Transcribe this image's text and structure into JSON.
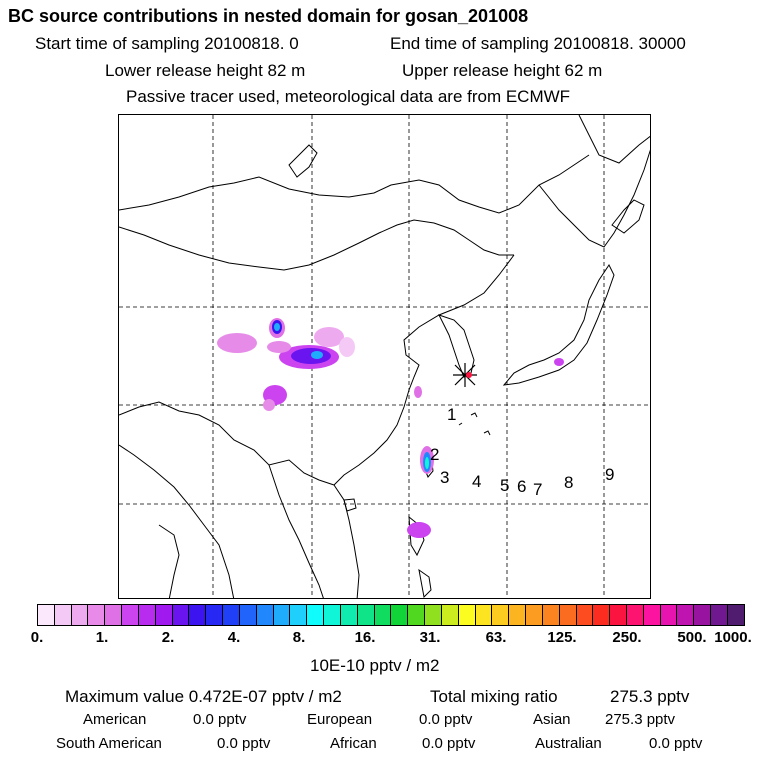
{
  "header": {
    "title": "BC  source contributions in nested domain for gosan_201008",
    "line1_start": "Start time of sampling 20100818.     0",
    "line1_end": "End time of sampling 20100818. 30000",
    "line2_lower": "Lower release height   82 m",
    "line2_upper": "Upper release height   62 m",
    "line3": "Passive tracer used, meteorological data are from ECMWF"
  },
  "map": {
    "receptor_marker": "star-cross",
    "site_labels": [
      "1",
      "2",
      "3",
      "4",
      "5",
      "6",
      "7",
      "8",
      "9"
    ]
  },
  "colorbar": {
    "ticks": [
      "0.",
      "1.",
      "2.",
      "4.",
      "8.",
      "16.",
      "31.",
      "63.",
      "125.",
      "250.",
      "500.",
      "1000."
    ],
    "colors": [
      "#fce8fc",
      "#f5c9f5",
      "#eeaaee",
      "#e88be8",
      "#e070e6",
      "#cc44f0",
      "#b82cf0",
      "#a01af0",
      "#6a14f0",
      "#3c14f0",
      "#2828f4",
      "#2040f8",
      "#2064fc",
      "#2088fc",
      "#20acfc",
      "#20d0fc",
      "#10fcfc",
      "#10f4d8",
      "#10ecb0",
      "#10e488",
      "#10dc60",
      "#10d438",
      "#50d820",
      "#90e020",
      "#ccec20",
      "#fcfc20",
      "#fce420",
      "#fccc20",
      "#fcb420",
      "#fc9c20",
      "#fc8420",
      "#fc6c20",
      "#fc4c20",
      "#fc2c20",
      "#fc1440",
      "#fc1470",
      "#fc14a0",
      "#e814b0",
      "#c014b0",
      "#9814a0",
      "#701890",
      "#501c70"
    ],
    "unit_label": "10E-10 pptv / m2"
  },
  "footer": {
    "max_label": "Maximum value  0.472E-07 pptv / m2",
    "total_label": "Total mixing ratio",
    "total_value": "275.3 pptv",
    "american_label": "American",
    "american_value": "0.0 pptv",
    "european_label": "European",
    "european_value": "0.0 pptv",
    "asian_label": "Asian",
    "asian_value": "275.3 pptv",
    "south_american_label": "South American",
    "south_american_value": "0.0 pptv",
    "african_label": "African",
    "african_value": "0.0 pptv",
    "australian_label": "Australian",
    "australian_value": "0.0 pptv"
  }
}
